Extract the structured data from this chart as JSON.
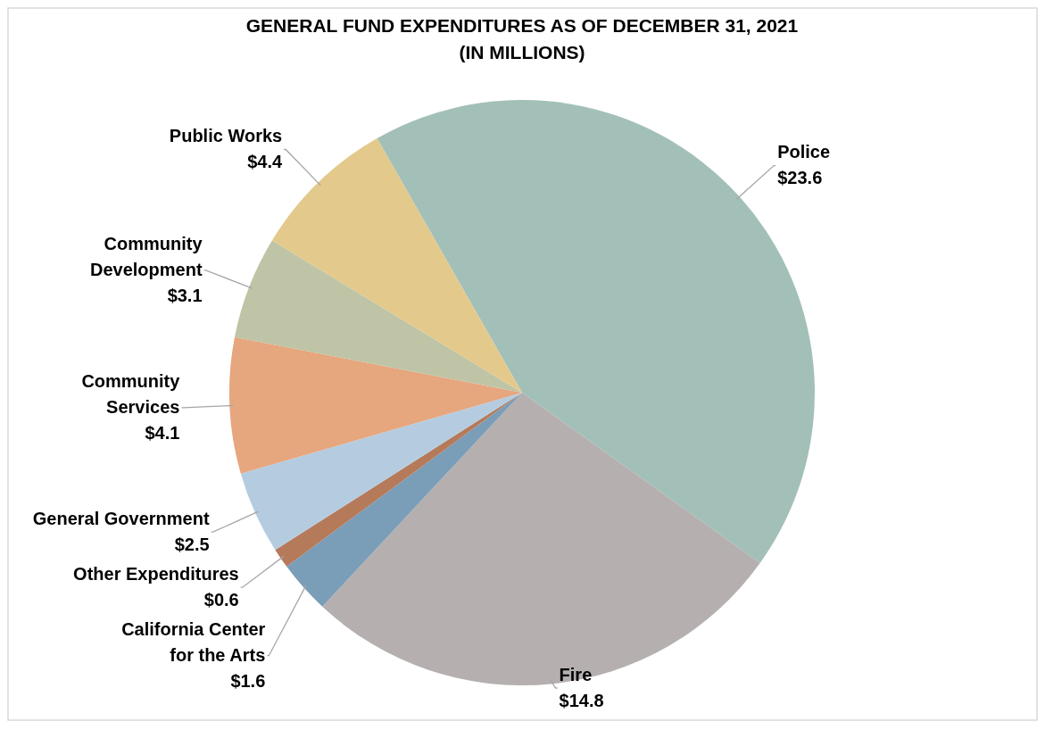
{
  "chart_data": {
    "type": "pie",
    "title": "GENERAL FUND EXPENDITURES AS OF DECEMBER 31, 2021\n(IN MILLIONS)",
    "categories": [
      "Police",
      "Fire",
      "California Center for the Arts",
      "Other Expenditures",
      "General Government",
      "Community Services",
      "Community Development",
      "Public Works"
    ],
    "values": [
      23.6,
      14.8,
      1.6,
      0.6,
      2.5,
      4.1,
      3.1,
      4.4
    ],
    "value_labels": [
      "$23.6",
      "$14.8",
      "$1.6",
      "$0.6",
      "$2.5",
      "$4.1",
      "$3.1",
      "$4.4"
    ],
    "colors": [
      "#a3c0b8",
      "#b5afaf",
      "#7a9db8",
      "#b57a5a",
      "#b5cce0",
      "#e6a67e",
      "#bec4a5",
      "#e3c98b"
    ],
    "legend": false
  }
}
